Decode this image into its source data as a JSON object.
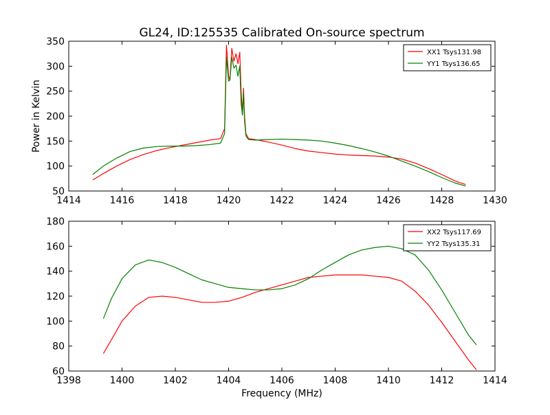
{
  "figure": {
    "title": "GL24, ID:125535 Calibrated On-source spectrum",
    "ylabel": "Power in Kelvin",
    "xlabel": "Frequency (MHz)"
  },
  "chart_data": [
    {
      "type": "line",
      "title": "GL24, ID:125535 Calibrated On-source spectrum",
      "ylabel": "Power in Kelvin",
      "xlabel": "",
      "xlim": [
        1414,
        1430
      ],
      "ylim": [
        50,
        350
      ],
      "xticks": [
        1414,
        1416,
        1418,
        1420,
        1422,
        1424,
        1426,
        1428,
        1430
      ],
      "yticks": [
        50,
        100,
        150,
        200,
        250,
        300,
        350
      ],
      "grid": false,
      "legend": "top-right",
      "series": [
        {
          "name": "XX1 Tsys131.98",
          "color": "#ff0000",
          "x": [
            1414.9,
            1415.3,
            1415.8,
            1416.3,
            1416.8,
            1417.3,
            1417.8,
            1418.3,
            1418.8,
            1419.3,
            1419.7,
            1419.85,
            1419.92,
            1420.0,
            1420.05,
            1420.12,
            1420.2,
            1420.28,
            1420.35,
            1420.42,
            1420.47,
            1420.52,
            1420.56,
            1420.6,
            1420.65,
            1420.75,
            1421.0,
            1421.5,
            1422.0,
            1422.5,
            1423.0,
            1423.5,
            1424.0,
            1424.5,
            1425.0,
            1425.5,
            1426.0,
            1426.5,
            1427.0,
            1427.5,
            1428.0,
            1428.5,
            1428.9
          ],
          "values": [
            72,
            85,
            100,
            113,
            123,
            131,
            137,
            142,
            147,
            152,
            155,
            175,
            342,
            280,
            272,
            336,
            310,
            325,
            305,
            328,
            250,
            205,
            256,
            200,
            165,
            155,
            153,
            148,
            142,
            135,
            130,
            127,
            124,
            122,
            121,
            120,
            118,
            114,
            106,
            95,
            83,
            70,
            63
          ]
        },
        {
          "name": "YY1 Tsys136.65",
          "color": "#008000",
          "x": [
            1414.9,
            1415.3,
            1415.8,
            1416.3,
            1416.8,
            1417.3,
            1417.8,
            1418.3,
            1418.8,
            1419.3,
            1419.7,
            1419.85,
            1419.92,
            1420.0,
            1420.05,
            1420.12,
            1420.2,
            1420.28,
            1420.35,
            1420.42,
            1420.47,
            1420.52,
            1420.56,
            1420.6,
            1420.65,
            1420.75,
            1421.0,
            1421.5,
            1422.0,
            1422.5,
            1423.0,
            1423.5,
            1424.0,
            1424.5,
            1425.0,
            1425.5,
            1426.0,
            1426.5,
            1427.0,
            1427.5,
            1428.0,
            1428.5,
            1428.9
          ],
          "values": [
            83,
            100,
            116,
            129,
            136,
            139,
            140,
            140,
            141,
            143,
            146,
            165,
            318,
            270,
            272,
            318,
            296,
            302,
            280,
            300,
            225,
            202,
            246,
            190,
            160,
            153,
            152,
            153,
            154,
            153,
            152,
            150,
            146,
            141,
            135,
            128,
            120,
            110,
            100,
            89,
            77,
            66,
            60
          ]
        }
      ]
    },
    {
      "type": "line",
      "title": "",
      "ylabel": "",
      "xlabel": "Frequency (MHz)",
      "xlim": [
        1398,
        1414
      ],
      "ylim": [
        60,
        180
      ],
      "xticks": [
        1398,
        1400,
        1402,
        1404,
        1406,
        1408,
        1410,
        1412,
        1414
      ],
      "yticks": [
        60,
        80,
        100,
        120,
        140,
        160,
        180
      ],
      "grid": false,
      "legend": "top-right",
      "series": [
        {
          "name": "XX2 Tsys117.69",
          "color": "#ff0000",
          "x": [
            1399.3,
            1399.6,
            1400.0,
            1400.5,
            1401.0,
            1401.5,
            1402.0,
            1402.5,
            1403.0,
            1403.5,
            1404.0,
            1404.5,
            1405.0,
            1405.5,
            1406.0,
            1406.5,
            1407.0,
            1407.5,
            1408.0,
            1408.5,
            1409.0,
            1409.5,
            1410.0,
            1410.5,
            1411.0,
            1411.5,
            1412.0,
            1412.5,
            1413.0,
            1413.3
          ],
          "values": [
            74,
            85,
            100,
            112,
            119,
            120,
            119,
            117,
            115,
            115,
            116,
            119,
            123,
            126,
            129,
            132,
            135,
            136,
            137,
            137,
            137,
            136,
            135,
            132,
            124,
            113,
            99,
            84,
            69,
            61
          ]
        },
        {
          "name": "YY2 Tsys135.31",
          "color": "#008000",
          "x": [
            1399.3,
            1399.6,
            1400.0,
            1400.5,
            1401.0,
            1401.5,
            1402.0,
            1402.5,
            1403.0,
            1403.5,
            1404.0,
            1404.5,
            1405.0,
            1405.5,
            1406.0,
            1406.5,
            1407.0,
            1407.5,
            1408.0,
            1408.5,
            1409.0,
            1409.5,
            1410.0,
            1410.5,
            1411.0,
            1411.5,
            1412.0,
            1412.5,
            1413.0,
            1413.3
          ],
          "values": [
            102,
            118,
            134,
            145,
            149,
            147,
            143,
            138,
            133,
            130,
            127,
            126,
            125,
            125,
            126,
            129,
            134,
            141,
            147,
            153,
            157,
            159,
            160,
            158,
            153,
            141,
            125,
            107,
            89,
            81
          ]
        }
      ]
    }
  ]
}
